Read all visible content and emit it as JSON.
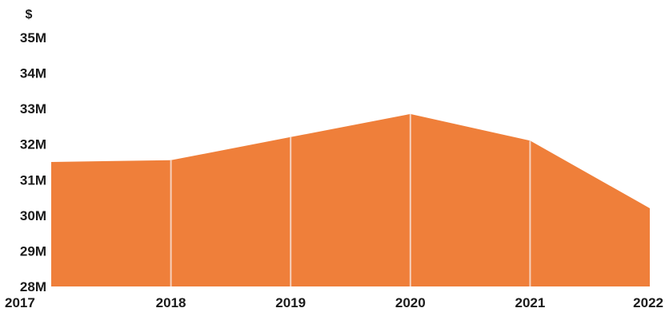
{
  "chart_data": {
    "type": "area",
    "x": [
      "2017",
      "2018",
      "2019",
      "2020",
      "2021",
      "2022"
    ],
    "values": [
      31.5,
      31.55,
      32.2,
      32.85,
      32.1,
      30.2
    ],
    "y_ticks": [
      "28M",
      "29M",
      "30M",
      "31M",
      "32M",
      "33M",
      "34M",
      "35M"
    ],
    "y_tick_values": [
      28,
      29,
      30,
      31,
      32,
      33,
      34,
      35
    ],
    "ylim": [
      28,
      35
    ],
    "ylabel": "$",
    "xlabel": "",
    "title": "",
    "grid": false,
    "legend": "none",
    "fill_color": "#ef7f3a",
    "divider_color": "#f6d0bd"
  }
}
